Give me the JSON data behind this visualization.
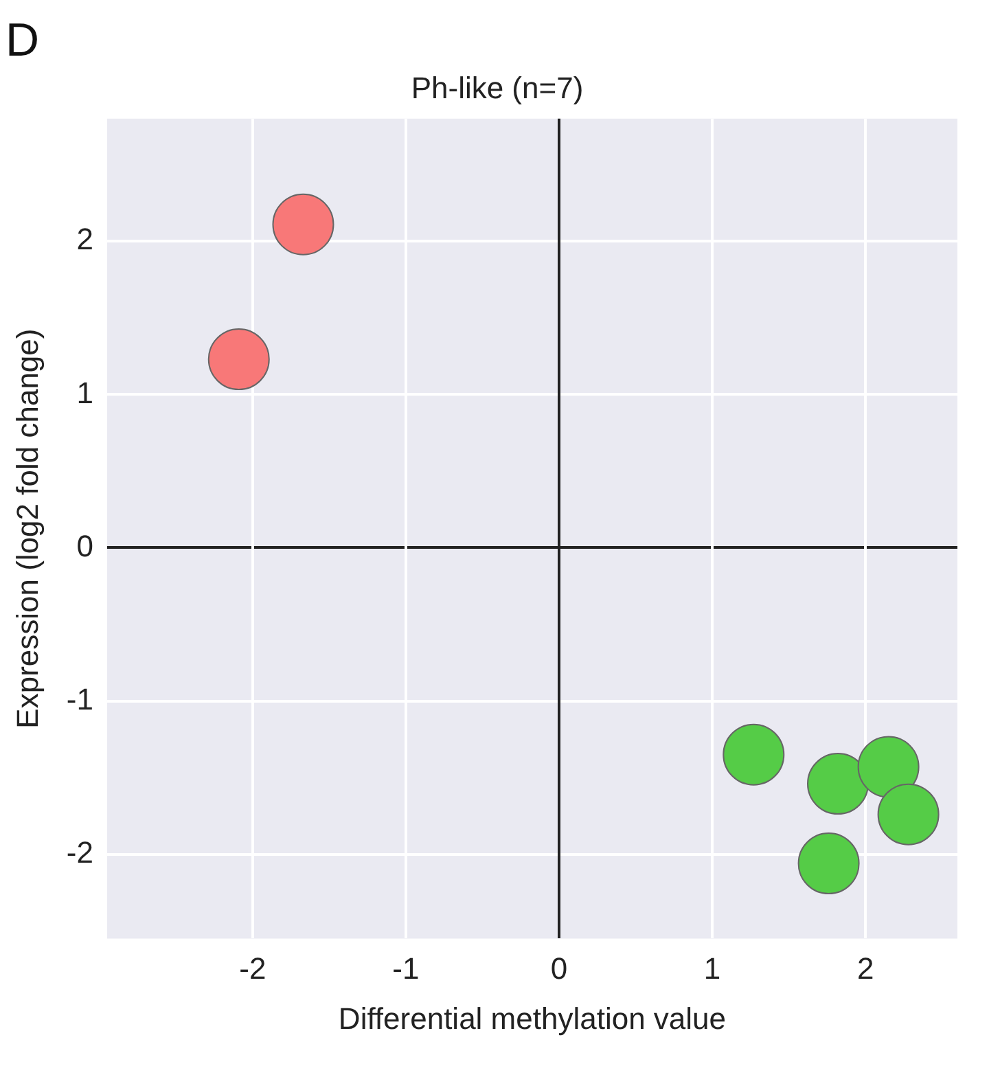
{
  "chart_data": {
    "type": "scatter",
    "title": "Ph-like (n=7)",
    "xlabel": "Differential methylation value",
    "ylabel": "Expression (log2 fold change)",
    "annotations": [
      "D"
    ],
    "series": [
      {
        "color": "#f87878",
        "x": [
          -1.67,
          -2.09
        ],
        "values": [
          2.11,
          1.23
        ]
      },
      {
        "color": "#55cc47",
        "x": [
          1.27,
          1.82,
          2.15,
          2.28,
          1.76
        ],
        "values": [
          -1.35,
          -1.54,
          -1.43,
          -1.74,
          -2.06
        ]
      }
    ],
    "xlim": [
      -2.95,
      2.6
    ],
    "ylim": [
      -2.55,
      2.8
    ],
    "xticks": [
      -2,
      -1,
      0,
      1,
      2
    ],
    "yticks": [
      -2,
      -1,
      0,
      1,
      2
    ],
    "grid": true,
    "marker": "circle"
  }
}
